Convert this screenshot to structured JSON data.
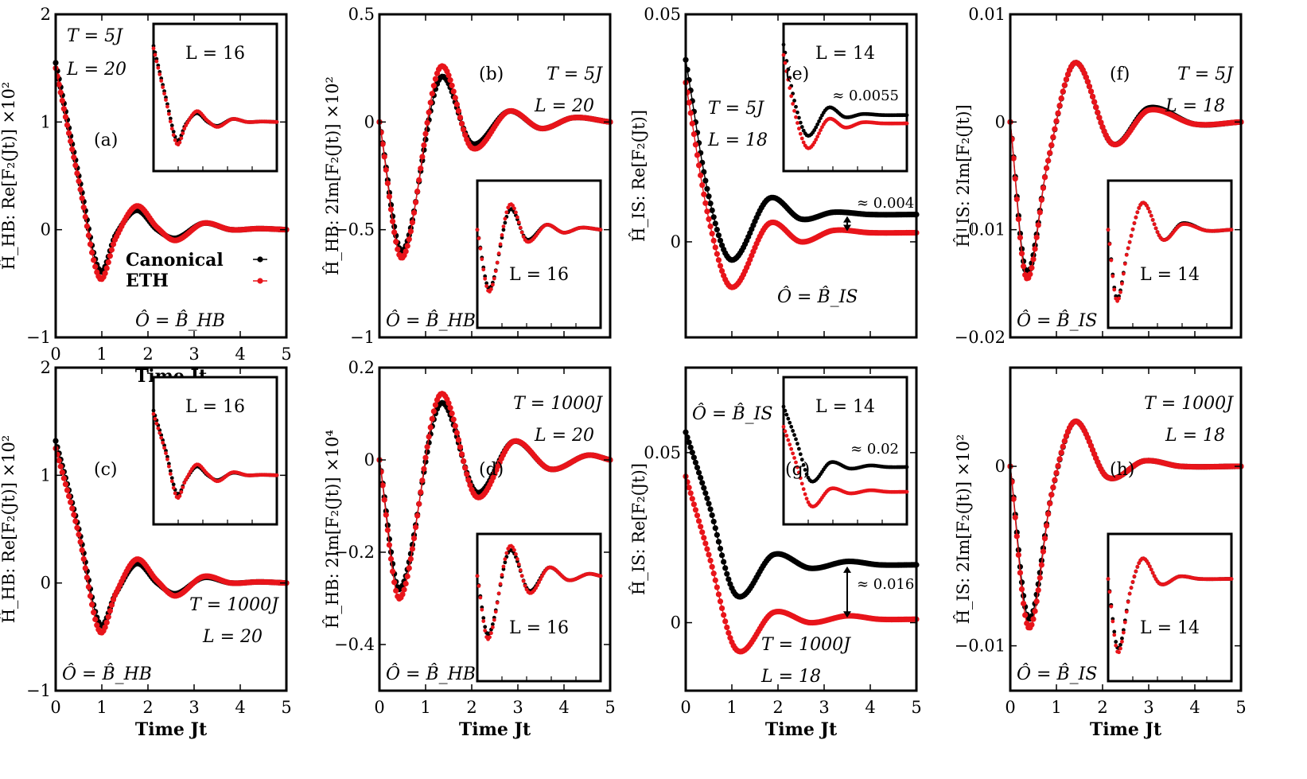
{
  "colors": {
    "canonical": "#000000",
    "eth": "#e8141a"
  },
  "legend": {
    "series": [
      "Canonical",
      "ETH"
    ]
  },
  "panels": [
    {
      "id": "a",
      "letter": "(a)",
      "title_lines": [
        "T = 5J",
        "L = 20"
      ],
      "ylabel": "Ĥ_HB: Re[F₂(Jt)] ×10²",
      "xlabel": "Time Jt",
      "operator": "Ô = B̂_HB",
      "xticks": [
        "0",
        "1",
        "2",
        "3",
        "4",
        "5"
      ],
      "yticks": [
        "−1",
        "0",
        "1",
        "2"
      ],
      "ylim": [
        -1,
        2
      ],
      "xlim": [
        0,
        5
      ],
      "inset": {
        "label": "L = 16"
      }
    },
    {
      "id": "b",
      "letter": "(b)",
      "title_lines": [
        "T = 5J",
        "L = 20"
      ],
      "ylabel": "Ĥ_HB: 2Im[F₂(Jt)] ×10²",
      "xlabel": "",
      "operator": "Ô = B̂_HB",
      "xticks": [
        "",
        "",
        "",
        "",
        "",
        ""
      ],
      "yticks": [
        "−1",
        "−0.5",
        "0",
        "0.5"
      ],
      "ylim": [
        -1,
        0.5
      ],
      "xlim": [
        0,
        5
      ],
      "inset": {
        "label": "L = 16"
      }
    },
    {
      "id": "e",
      "letter": "(e)",
      "title_lines": [
        "T = 5J",
        "L = 18"
      ],
      "ylabel": "Ĥ_IS: Re[F₂(Jt)]",
      "xlabel": "",
      "operator": "Ô = B̂_IS",
      "xticks": [
        "",
        "",
        "",
        "",
        "",
        ""
      ],
      "yticks": [
        "0",
        "0.05"
      ],
      "ylim": [
        -0.021,
        0.05
      ],
      "xlim": [
        0,
        5
      ],
      "annotation": "≈ 0.004",
      "inset": {
        "label": "L = 14",
        "annotation": "≈ 0.0055"
      }
    },
    {
      "id": "f",
      "letter": "(f)",
      "title_lines": [
        "T = 5J",
        "L = 18"
      ],
      "ylabel": "Ĥ_IS: 2Im[F₂(Jt)]",
      "xlabel": "",
      "operator": "Ô = B̂_IS",
      "xticks": [
        "",
        "",
        "",
        "",
        "",
        ""
      ],
      "yticks": [
        "−0.02",
        "−0.01",
        "0",
        "0.01"
      ],
      "ylim": [
        -0.02,
        0.01
      ],
      "xlim": [
        0,
        5
      ],
      "inset": {
        "label": "L = 14"
      }
    },
    {
      "id": "c",
      "letter": "(c)",
      "title_lines": [
        "T = 1000J",
        "L = 20"
      ],
      "ylabel": "Ĥ_HB: Re[F₂(Jt)] ×10²",
      "xlabel": "Time Jt",
      "operator": "Ô = B̂_HB",
      "xticks": [
        "0",
        "1",
        "2",
        "3",
        "4",
        "5"
      ],
      "yticks": [
        "−1",
        "0",
        "1",
        "2"
      ],
      "ylim": [
        -1,
        2
      ],
      "xlim": [
        0,
        5
      ],
      "inset": {
        "label": "L = 16"
      }
    },
    {
      "id": "d",
      "letter": "(d)",
      "title_lines": [
        "T = 1000J",
        "L = 20"
      ],
      "ylabel": "Ĥ_HB: 2Im[F₂(Jt)] ×10⁴",
      "xlabel": "Time Jt",
      "operator": "Ô = B̂_HB",
      "xticks": [
        "0",
        "1",
        "2",
        "3",
        "4",
        "5"
      ],
      "yticks": [
        "−0.4",
        "−0.2",
        "0",
        "0.2"
      ],
      "ylim": [
        -0.5,
        0.2
      ],
      "xlim": [
        0,
        5
      ],
      "inset": {
        "label": "L = 16"
      }
    },
    {
      "id": "g",
      "letter": "(g)",
      "title_lines": [
        "T = 1000J",
        "L = 18"
      ],
      "ylabel": "Ĥ_IS: Re[F₂(Jt)]",
      "xlabel": "Time Jt",
      "operator": "Ô = B̂_IS",
      "xticks": [
        "0",
        "1",
        "2",
        "3",
        "4",
        "5"
      ],
      "yticks": [
        "0",
        "0.05"
      ],
      "ylim": [
        -0.02,
        0.075
      ],
      "xlim": [
        0,
        5
      ],
      "annotation": "≈ 0.016",
      "inset": {
        "label": "L = 14",
        "annotation": "≈ 0.02"
      }
    },
    {
      "id": "h",
      "letter": "(h)",
      "title_lines": [
        "T = 1000J",
        "L = 18"
      ],
      "ylabel": "Ĥ_IS: 2Im[F₂(Jt)] ×10²",
      "xlabel": "Time Jt",
      "operator": "Ô = B̂_IS",
      "xticks": [
        "0",
        "1",
        "2",
        "3",
        "4",
        "5"
      ],
      "yticks": [
        "−0.01",
        "0"
      ],
      "ylim": [
        -0.0125,
        0.0055
      ],
      "xlim": [
        0,
        5
      ],
      "inset": {
        "label": "L = 14"
      }
    }
  ],
  "chart_data": [
    {
      "type": "scatter",
      "id": "a",
      "x": [
        0,
        0.5,
        0.95,
        1.3,
        1.75,
        2.2,
        2.6,
        3.2,
        3.8,
        4.4,
        5
      ],
      "series": [
        {
          "name": "Canonical",
          "values": [
            1.55,
            0.5,
            -0.38,
            -0.05,
            0.18,
            0.0,
            -0.08,
            0.06,
            0.0,
            0.01,
            0.0
          ]
        },
        {
          "name": "ETH",
          "values": [
            1.5,
            0.45,
            -0.45,
            -0.08,
            0.22,
            0.02,
            -0.1,
            0.06,
            0.0,
            0.01,
            0.0
          ]
        }
      ]
    },
    {
      "type": "scatter",
      "id": "b",
      "x": [
        0,
        0.5,
        1.3,
        2.0,
        2.8,
        3.5,
        4.2,
        5
      ],
      "series": [
        {
          "name": "Canonical",
          "values": [
            0,
            -0.6,
            0.2,
            -0.1,
            0.05,
            -0.03,
            0.02,
            0.0
          ]
        },
        {
          "name": "ETH",
          "values": [
            0,
            -0.63,
            0.25,
            -0.12,
            0.05,
            -0.03,
            0.02,
            0.0
          ]
        }
      ]
    },
    {
      "type": "scatter",
      "id": "e",
      "x": [
        0,
        0.5,
        1.0,
        1.8,
        2.5,
        3.2,
        4.0,
        5
      ],
      "series": [
        {
          "name": "Canonical",
          "values": [
            0.04,
            0.01,
            -0.004,
            0.0095,
            0.005,
            0.0065,
            0.006,
            0.006
          ]
        },
        {
          "name": "ETH",
          "values": [
            0.035,
            0.005,
            -0.01,
            0.004,
            0.0,
            0.0025,
            0.002,
            0.002
          ]
        }
      ]
    },
    {
      "type": "scatter",
      "id": "f",
      "x": [
        0,
        0.35,
        0.8,
        1.4,
        2.2,
        3.0,
        4.0,
        5
      ],
      "series": [
        {
          "name": "Canonical",
          "values": [
            0,
            -0.014,
            -0.004,
            0.0055,
            -0.002,
            0.0013,
            -0.0002,
            0.0
          ]
        },
        {
          "name": "ETH",
          "values": [
            0,
            -0.0145,
            -0.004,
            0.0055,
            -0.002,
            0.0011,
            -0.0002,
            0.0
          ]
        }
      ]
    },
    {
      "type": "scatter",
      "id": "c",
      "x": [
        0,
        0.5,
        0.95,
        1.3,
        1.75,
        2.2,
        2.6,
        3.2,
        3.8,
        4.4,
        5
      ],
      "series": [
        {
          "name": "Canonical",
          "values": [
            1.32,
            0.5,
            -0.38,
            -0.1,
            0.18,
            0.0,
            -0.1,
            0.05,
            0.0,
            0.01,
            0.0
          ]
        },
        {
          "name": "ETH",
          "values": [
            1.25,
            0.45,
            -0.45,
            -0.1,
            0.22,
            0.02,
            -0.12,
            0.06,
            0.0,
            0.01,
            0.0
          ]
        }
      ]
    },
    {
      "type": "scatter",
      "id": "d",
      "x": [
        0,
        0.45,
        1.3,
        2.1,
        2.9,
        3.7,
        4.5,
        5
      ],
      "series": [
        {
          "name": "Canonical",
          "values": [
            0,
            -0.28,
            0.12,
            -0.07,
            0.04,
            -0.02,
            0.01,
            0.0
          ]
        },
        {
          "name": "ETH",
          "values": [
            0,
            -0.3,
            0.14,
            -0.08,
            0.04,
            -0.02,
            0.01,
            0.0
          ]
        }
      ]
    },
    {
      "type": "scatter",
      "id": "g",
      "x": [
        0,
        0.5,
        1.1,
        1.9,
        2.7,
        3.5,
        4.2,
        5
      ],
      "series": [
        {
          "name": "Canonical",
          "values": [
            0.056,
            0.035,
            0.008,
            0.02,
            0.016,
            0.018,
            0.017,
            0.017
          ]
        },
        {
          "name": "ETH",
          "values": [
            0.043,
            0.02,
            -0.008,
            0.003,
            0.0,
            0.002,
            0.001,
            0.001
          ]
        }
      ]
    },
    {
      "type": "scatter",
      "id": "h",
      "x": [
        0,
        0.4,
        0.9,
        1.4,
        2.1,
        2.9,
        3.7,
        5
      ],
      "series": [
        {
          "name": "Canonical",
          "values": [
            0,
            -0.0085,
            -0.0015,
            0.0025,
            -0.0006,
            0.0003,
            0.0,
            0.0
          ]
        },
        {
          "name": "ETH",
          "values": [
            0,
            -0.009,
            -0.0015,
            0.0025,
            -0.0006,
            0.0003,
            0.0,
            0.0
          ]
        }
      ]
    }
  ]
}
